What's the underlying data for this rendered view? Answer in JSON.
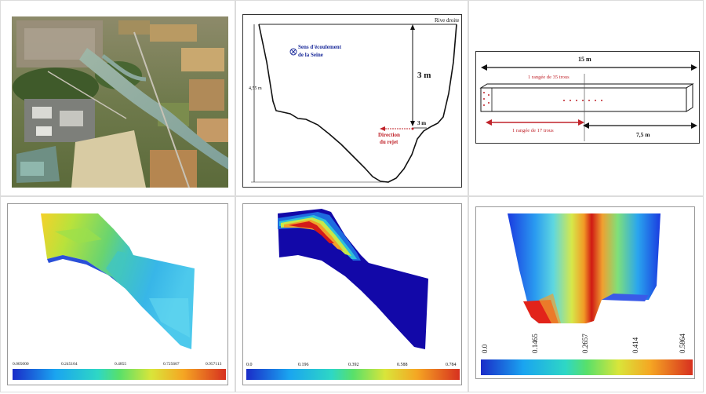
{
  "cross_section": {
    "rive_label": "Rive droite",
    "flow_label_line1": "Sens d'écoulement",
    "flow_label_line2": "de la Seine",
    "depth_label": "4,55 m",
    "height_label": "3 m",
    "offset_label": "3 m",
    "rejet_line1": "Direction",
    "rejet_line2": "du rejet"
  },
  "diffuser": {
    "length_label": "15 m",
    "row35_label": "1 rangée de 35 trous",
    "row17_label": "1 rangée de 17 trous",
    "half_label": "7,5 m"
  },
  "colorbars": {
    "first": [
      "0.005000",
      "0.245104",
      "0.4855",
      "0.725607",
      "0.957113"
    ],
    "second": [
      "0.0",
      "0.196",
      "0.392",
      "0.588",
      "0.784"
    ],
    "third": [
      "0.0",
      "0.1465",
      "0.2657",
      "0.414",
      "0.5864"
    ]
  },
  "colors": {
    "arrow_red": "#c0242b",
    "label_blue": "#1a2a9a",
    "cell_border": "#dcdcdc"
  }
}
